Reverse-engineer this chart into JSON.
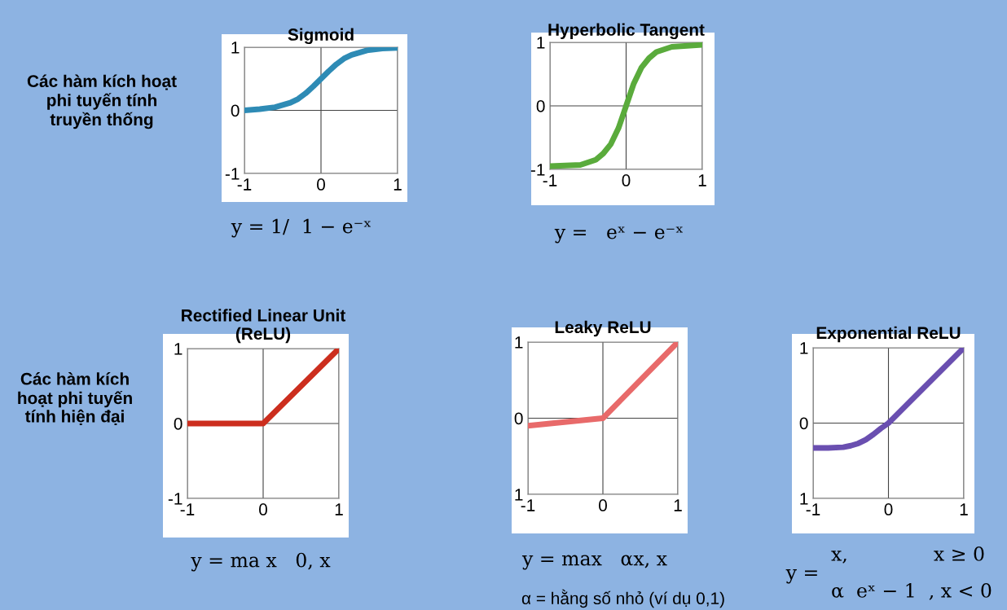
{
  "chart_data": [
    {
      "type": "line",
      "title": "Sigmoid",
      "x": [
        -1,
        -0.8,
        -0.6,
        -0.4,
        -0.3,
        -0.2,
        -0.1,
        0,
        0.1,
        0.2,
        0.3,
        0.4,
        0.6,
        0.8,
        1
      ],
      "series": [
        {
          "color": "#2e8bb5",
          "values": [
            0.0,
            0.02,
            0.05,
            0.12,
            0.18,
            0.27,
            0.38,
            0.5,
            0.62,
            0.73,
            0.82,
            0.88,
            0.95,
            0.98,
            0.99
          ]
        }
      ],
      "xlim": [
        -1,
        1
      ],
      "ylim": [
        -1,
        1
      ],
      "xticks": [
        -1,
        0,
        1
      ],
      "yticks": [
        -1,
        0,
        1
      ],
      "grid": true,
      "annotations": [
        "y = 1/  1 − e⁻ˣ",
        "Các hàm kích hoạt\nphi tuyến tính\ntruyền thống"
      ]
    },
    {
      "type": "line",
      "title": "Hyperbolic Tangent",
      "x": [
        -1,
        -0.6,
        -0.4,
        -0.3,
        -0.2,
        -0.1,
        0,
        0.1,
        0.2,
        0.3,
        0.4,
        0.6,
        1
      ],
      "series": [
        {
          "color": "#5aab3c",
          "values": [
            -0.95,
            -0.93,
            -0.85,
            -0.75,
            -0.6,
            -0.35,
            0,
            0.35,
            0.6,
            0.75,
            0.85,
            0.93,
            0.96
          ]
        }
      ],
      "xlim": [
        -1,
        1
      ],
      "ylim": [
        -1,
        1
      ],
      "xticks": [
        -1,
        0,
        1
      ],
      "yticks": [
        -1,
        0,
        1
      ],
      "grid": true,
      "annotations": [
        "y =   eˣ − e⁻ˣ"
      ]
    },
    {
      "type": "line",
      "title": "Rectified Linear Unit\n(ReLU)",
      "x": [
        -1,
        0,
        1
      ],
      "series": [
        {
          "color": "#cc2e1e",
          "values": [
            0,
            0,
            1
          ]
        }
      ],
      "xlim": [
        -1,
        1
      ],
      "ylim": [
        -1,
        1
      ],
      "xticks": [
        -1,
        0,
        1
      ],
      "yticks": [
        -1,
        0,
        1
      ],
      "grid": true,
      "annotations": [
        "y = ma x   0, x",
        "Các hàm kích\nhoạt phi tuyến\ntính hiện đại"
      ]
    },
    {
      "type": "line",
      "title": "Leaky ReLU",
      "x": [
        -1,
        0,
        1
      ],
      "series": [
        {
          "color": "#e86a6a",
          "values": [
            -0.1,
            0,
            1
          ]
        }
      ],
      "xlim": [
        -1,
        1
      ],
      "ylim": [
        -1,
        1
      ],
      "xticks": [
        -1,
        0,
        1
      ],
      "yticks": [
        {
          "value": -1,
          "label": "1"
        },
        0,
        1
      ],
      "grid": true,
      "annotations": [
        "y = max   αx, x",
        "α = hằng số nhỏ (ví dụ 0,1)"
      ]
    },
    {
      "type": "line",
      "title": "Exponential ReLU",
      "x": [
        -1,
        -0.8,
        -0.6,
        -0.5,
        -0.4,
        -0.3,
        -0.2,
        -0.1,
        0,
        0.5,
        1
      ],
      "series": [
        {
          "color": "#6a4fb0",
          "values": [
            -0.33,
            -0.33,
            -0.32,
            -0.3,
            -0.27,
            -0.22,
            -0.15,
            -0.07,
            0,
            0.5,
            1
          ]
        }
      ],
      "xlim": [
        -1,
        1
      ],
      "ylim": [
        -1,
        1
      ],
      "xticks": [
        -1,
        0,
        1
      ],
      "yticks": [
        {
          "value": -1,
          "label": "1"
        },
        0,
        1
      ],
      "grid": true,
      "annotations": [
        "y =",
        "x,              x ≥ 0",
        "α  eˣ − 1  , x < 0"
      ]
    }
  ]
}
